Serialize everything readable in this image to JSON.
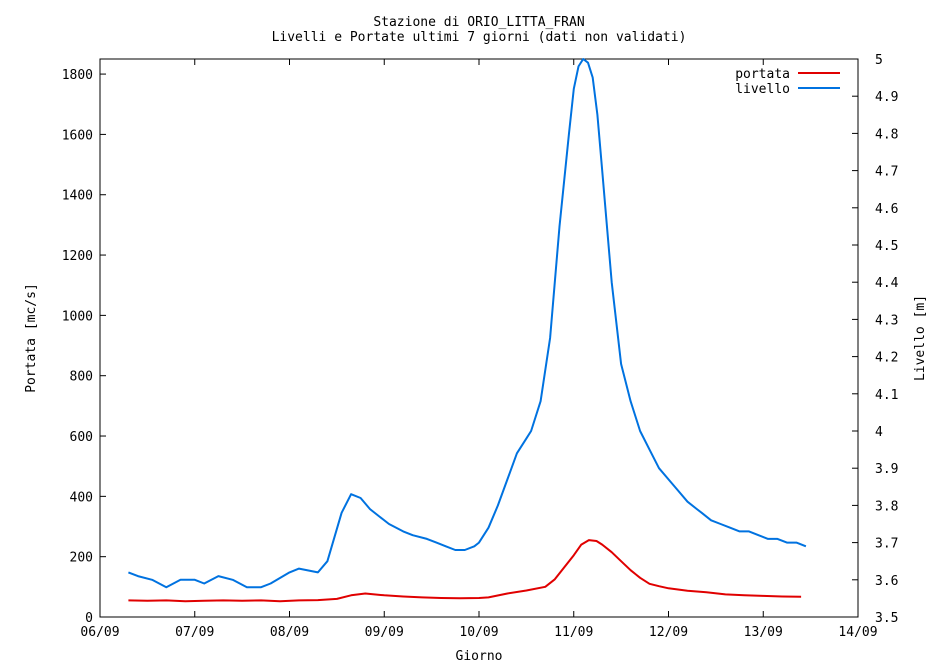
{
  "chart_data": {
    "type": "line",
    "title": "Stazione di ORIO_LITTA_FRAN",
    "subtitle": "Livelli e Portate ultimi 7 giorni (dati non validati)",
    "xlabel": "Giorno",
    "ylabel": "Portata [mc/s]",
    "y2label": "Livello [m]",
    "x_ticks": [
      "06/09",
      "07/09",
      "08/09",
      "09/09",
      "10/09",
      "11/09",
      "12/09",
      "13/09",
      "14/09"
    ],
    "y_ticks": [
      "0",
      "200",
      "400",
      "600",
      "800",
      "1000",
      "1200",
      "1400",
      "1600",
      "1800"
    ],
    "y2_ticks": [
      "3.5",
      "3.6",
      "3.7",
      "3.8",
      "3.9",
      "4",
      "4.1",
      "4.2",
      "4.3",
      "4.4",
      "4.5",
      "4.6",
      "4.7",
      "4.8",
      "4.9",
      "5"
    ],
    "xlim": [
      0,
      8
    ],
    "ylim": [
      0,
      1850
    ],
    "y2lim": [
      3.5,
      5.0
    ],
    "legend_position": "top-right",
    "series": [
      {
        "name": "portata",
        "axis": "left",
        "color": "#e00000",
        "x": [
          0.3,
          0.5,
          0.7,
          0.9,
          1.1,
          1.3,
          1.5,
          1.7,
          1.9,
          2.1,
          2.3,
          2.5,
          2.65,
          2.8,
          3.0,
          3.2,
          3.4,
          3.6,
          3.8,
          4.0,
          4.1,
          4.3,
          4.5,
          4.7,
          4.8,
          4.9,
          5.0,
          5.08,
          5.16,
          5.24,
          5.3,
          5.4,
          5.5,
          5.6,
          5.7,
          5.8,
          5.9,
          6.0,
          6.2,
          6.4,
          6.6,
          6.8,
          7.0,
          7.2,
          7.4
        ],
        "y": [
          55,
          54,
          55,
          52,
          54,
          55,
          54,
          55,
          52,
          55,
          56,
          60,
          72,
          78,
          72,
          68,
          65,
          63,
          62,
          63,
          65,
          78,
          88,
          100,
          125,
          165,
          205,
          240,
          255,
          252,
          240,
          215,
          185,
          155,
          130,
          110,
          102,
          95,
          87,
          82,
          75,
          72,
          70,
          68,
          67
        ]
      },
      {
        "name": "livello",
        "axis": "right",
        "color": "#0072e0",
        "x": [
          0.3,
          0.4,
          0.55,
          0.7,
          0.85,
          1.0,
          1.1,
          1.25,
          1.4,
          1.55,
          1.7,
          1.8,
          2.0,
          2.1,
          2.3,
          2.4,
          2.55,
          2.65,
          2.75,
          2.85,
          2.95,
          3.05,
          3.2,
          3.3,
          3.45,
          3.55,
          3.65,
          3.75,
          3.85,
          3.95,
          4.0,
          4.1,
          4.2,
          4.3,
          4.4,
          4.5,
          4.55,
          4.65,
          4.75,
          4.85,
          4.95,
          5.0,
          5.05,
          5.1,
          5.15,
          5.2,
          5.25,
          5.3,
          5.4,
          5.5,
          5.6,
          5.7,
          5.8,
          5.9,
          6.0,
          6.1,
          6.2,
          6.3,
          6.35,
          6.45,
          6.55,
          6.65,
          6.75,
          6.85,
          6.95,
          7.05,
          7.15,
          7.25,
          7.35,
          7.45
        ],
        "y": [
          3.62,
          3.61,
          3.6,
          3.58,
          3.6,
          3.6,
          3.59,
          3.61,
          3.6,
          3.58,
          3.58,
          3.59,
          3.62,
          3.63,
          3.62,
          3.65,
          3.78,
          3.83,
          3.82,
          3.79,
          3.77,
          3.75,
          3.73,
          3.72,
          3.71,
          3.7,
          3.69,
          3.68,
          3.68,
          3.69,
          3.7,
          3.74,
          3.8,
          3.87,
          3.94,
          3.98,
          4.0,
          4.08,
          4.25,
          4.55,
          4.8,
          4.92,
          4.98,
          5.0,
          4.99,
          4.95,
          4.85,
          4.7,
          4.4,
          4.18,
          4.08,
          4.0,
          3.95,
          3.9,
          3.87,
          3.84,
          3.81,
          3.79,
          3.78,
          3.76,
          3.75,
          3.74,
          3.73,
          3.73,
          3.72,
          3.71,
          3.71,
          3.7,
          3.7,
          3.69
        ]
      }
    ]
  }
}
